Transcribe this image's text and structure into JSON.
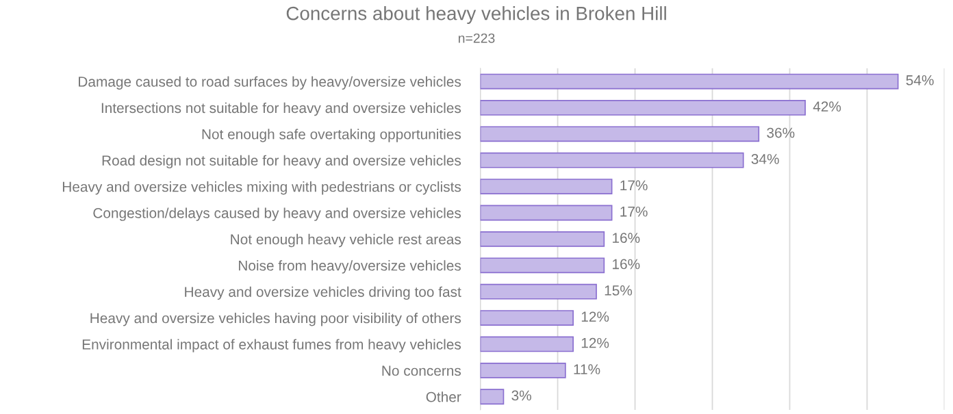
{
  "chart_data": {
    "type": "bar",
    "orientation": "horizontal",
    "title": "Concerns about heavy vehicles in Broken Hill",
    "subtitle": "n=223",
    "categories": [
      "Damage caused to road surfaces by heavy/oversize vehicles",
      "Intersections not suitable for heavy and oversize vehicles",
      "Not enough safe overtaking opportunities",
      "Road design not suitable for heavy and oversize vehicles",
      "Heavy and oversize vehicles mixing with pedestrians or cyclists",
      "Congestion/delays caused by heavy and oversize vehicles",
      "Not enough heavy vehicle rest areas",
      "Noise from heavy/oversize vehicles",
      "Heavy and oversize vehicles driving too fast",
      "Heavy and oversize vehicles having poor visibility of others",
      "Environmental impact of exhaust fumes from heavy vehicles",
      "No concerns",
      "Other"
    ],
    "values": [
      54,
      42,
      36,
      34,
      17,
      17,
      16,
      16,
      15,
      12,
      12,
      11,
      3
    ],
    "value_labels": [
      "54%",
      "42%",
      "36%",
      "34%",
      "17%",
      "17%",
      "16%",
      "16%",
      "15%",
      "12%",
      "12%",
      "11%",
      "3%"
    ],
    "color": "#c5b9e8",
    "xlim": [
      0,
      60
    ],
    "xticks": [
      {
        "value": 0,
        "label": null
      },
      {
        "value": 10,
        "label": null
      },
      {
        "value": 20,
        "label": null
      },
      {
        "value": 30,
        "label": null
      },
      {
        "value": 40,
        "label": null
      },
      {
        "value": 50,
        "label": null
      },
      {
        "value": 60,
        "label": null
      }
    ],
    "grid": "x",
    "tick_labels": "y"
  }
}
